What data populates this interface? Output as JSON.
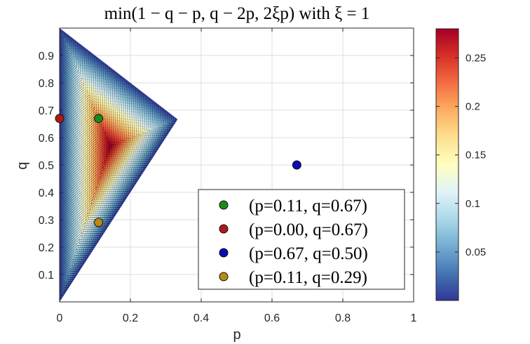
{
  "chart_data": {
    "type": "heatmap",
    "title": "min(1 − q − p, q − 2p, 2ξp) with ξ = 1",
    "xlabel": "p",
    "ylabel": "q",
    "xlim": [
      0,
      1
    ],
    "ylim": [
      0,
      1
    ],
    "x_ticks": [
      "0",
      "0.2",
      "0.4",
      "0.6",
      "0.8",
      "1"
    ],
    "y_ticks": [
      "0.1",
      "0.2",
      "0.3",
      "0.4",
      "0.5",
      "0.6",
      "0.7",
      "0.8",
      "0.9"
    ],
    "grid": true,
    "xi": 1,
    "surface": {
      "region_vertices": [
        [
          0,
          1
        ],
        [
          0,
          0
        ],
        [
          0.3333,
          0.6667
        ]
      ],
      "max_value": 0.2857,
      "max_at": [
        0.1429,
        0.5714
      ]
    },
    "colorbar": {
      "ticks": [
        "0.05",
        "0.1",
        "0.15",
        "0.2",
        "0.25"
      ],
      "range": [
        0,
        0.28
      ],
      "colormap": [
        "#313695",
        "#4575b4",
        "#74add1",
        "#abd9e9",
        "#e0f3f8",
        "#ffffbf",
        "#fee090",
        "#fdae61",
        "#f46d43",
        "#d73027",
        "#a50026"
      ]
    },
    "legend_position": "bottom-right",
    "series": [
      {
        "name": "(p=0.11, q=0.67)",
        "x": 0.11,
        "y": 0.67,
        "color": "#1a8a1a"
      },
      {
        "name": "(p=0.00, q=0.67)",
        "x": 0.0,
        "y": 0.67,
        "color": "#b01818"
      },
      {
        "name": "(p=0.67, q=0.50)",
        "x": 0.67,
        "y": 0.5,
        "color": "#0a0ab8"
      },
      {
        "name": "(p=0.11, q=0.29)",
        "x": 0.11,
        "y": 0.29,
        "color": "#b88a10"
      }
    ]
  }
}
